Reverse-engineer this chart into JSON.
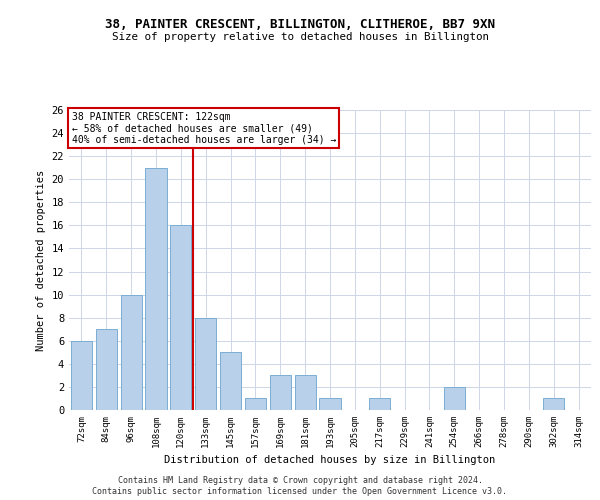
{
  "title": "38, PAINTER CRESCENT, BILLINGTON, CLITHEROE, BB7 9XN",
  "subtitle": "Size of property relative to detached houses in Billington",
  "xlabel": "Distribution of detached houses by size in Billington",
  "ylabel": "Number of detached properties",
  "bar_color": "#b8d0ea",
  "bar_edge_color": "#7aadd4",
  "categories": [
    "72sqm",
    "84sqm",
    "96sqm",
    "108sqm",
    "120sqm",
    "133sqm",
    "145sqm",
    "157sqm",
    "169sqm",
    "181sqm",
    "193sqm",
    "205sqm",
    "217sqm",
    "229sqm",
    "241sqm",
    "254sqm",
    "266sqm",
    "278sqm",
    "290sqm",
    "302sqm",
    "314sqm"
  ],
  "values": [
    6,
    7,
    10,
    21,
    16,
    8,
    5,
    1,
    3,
    3,
    1,
    0,
    1,
    0,
    0,
    2,
    0,
    0,
    0,
    1,
    0
  ],
  "ylim": [
    0,
    26
  ],
  "yticks": [
    0,
    2,
    4,
    6,
    8,
    10,
    12,
    14,
    16,
    18,
    20,
    22,
    24,
    26
  ],
  "vline_x": 4.5,
  "vline_color": "#cc0000",
  "annotation_line1": "38 PAINTER CRESCENT: 122sqm",
  "annotation_line2": "← 58% of detached houses are smaller (49)",
  "annotation_line3": "40% of semi-detached houses are larger (34) →",
  "annotation_box_color": "#cc0000",
  "footer1": "Contains HM Land Registry data © Crown copyright and database right 2024.",
  "footer2": "Contains public sector information licensed under the Open Government Licence v3.0.",
  "bg_color": "#ffffff",
  "grid_color": "#ccd6e8"
}
